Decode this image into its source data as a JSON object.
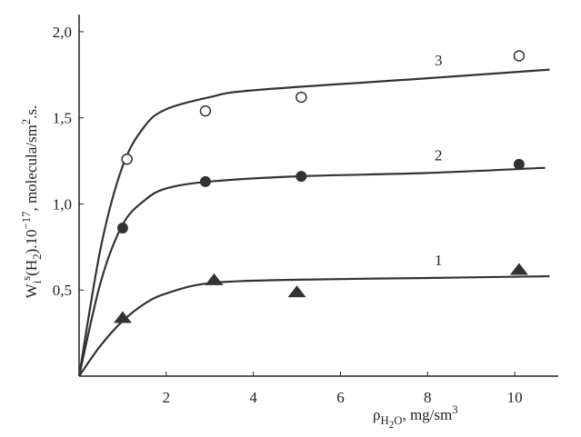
{
  "chart_data": {
    "type": "scatter",
    "xlim": [
      0,
      11
    ],
    "ylim": [
      0,
      2.1
    ],
    "xticks": [
      2,
      4,
      6,
      8,
      10
    ],
    "yticks": [
      {
        "value": 0.5,
        "label": "0,5"
      },
      {
        "value": 1.0,
        "label": "1,0"
      },
      {
        "value": 1.5,
        "label": "1,5"
      },
      {
        "value": 2.0,
        "label": "2,0"
      }
    ],
    "xlabel": [
      {
        "text": "ρ"
      },
      {
        "text": "H",
        "script": "sub"
      },
      {
        "text": "2",
        "script": "subsub"
      },
      {
        "text": "O",
        "script": "sub"
      },
      {
        "text": ", mg/sm"
      },
      {
        "text": "3",
        "script": "sup"
      }
    ],
    "ylabel": [
      {
        "text": "W"
      },
      {
        "text": "i",
        "script": "sub"
      },
      {
        "text": "s",
        "script": "sup"
      },
      {
        "text": "(H"
      },
      {
        "text": "2",
        "script": "sub"
      },
      {
        "text": ").10"
      },
      {
        "text": "−17",
        "script": "sup"
      },
      {
        "text": ", molecula/sm"
      },
      {
        "text": "2",
        "script": "sup"
      },
      {
        "text": ".s."
      }
    ],
    "series": [
      {
        "name": "1",
        "marker": "triangle",
        "color": "#333333",
        "x": [
          1.0,
          3.1,
          5.0,
          10.1
        ],
        "values": [
          0.34,
          0.56,
          0.49,
          0.62
        ],
        "curve_x": [
          0,
          0.5,
          1,
          1.5,
          2,
          3,
          5,
          8,
          10.8
        ],
        "curve_y": [
          0,
          0.18,
          0.32,
          0.42,
          0.48,
          0.54,
          0.56,
          0.57,
          0.58
        ]
      },
      {
        "name": "2",
        "marker": "filled-circle",
        "color": "#333333",
        "x": [
          1.0,
          2.9,
          5.1,
          10.1
        ],
        "values": [
          0.86,
          1.13,
          1.16,
          1.23
        ],
        "curve_x": [
          0,
          0.5,
          1,
          1.5,
          2,
          3,
          5,
          8,
          10.7
        ],
        "curve_y": [
          0,
          0.55,
          0.88,
          1.02,
          1.09,
          1.13,
          1.16,
          1.18,
          1.21
        ]
      },
      {
        "name": "3",
        "marker": "open-circle",
        "color": "#333333",
        "x": [
          1.1,
          2.9,
          5.1,
          10.1
        ],
        "values": [
          1.26,
          1.54,
          1.62,
          1.86
        ],
        "curve_x": [
          0,
          0.5,
          1,
          1.5,
          2,
          3,
          4,
          8,
          10.8
        ],
        "curve_y": [
          0,
          0.75,
          1.22,
          1.45,
          1.55,
          1.62,
          1.66,
          1.73,
          1.78
        ]
      }
    ]
  }
}
